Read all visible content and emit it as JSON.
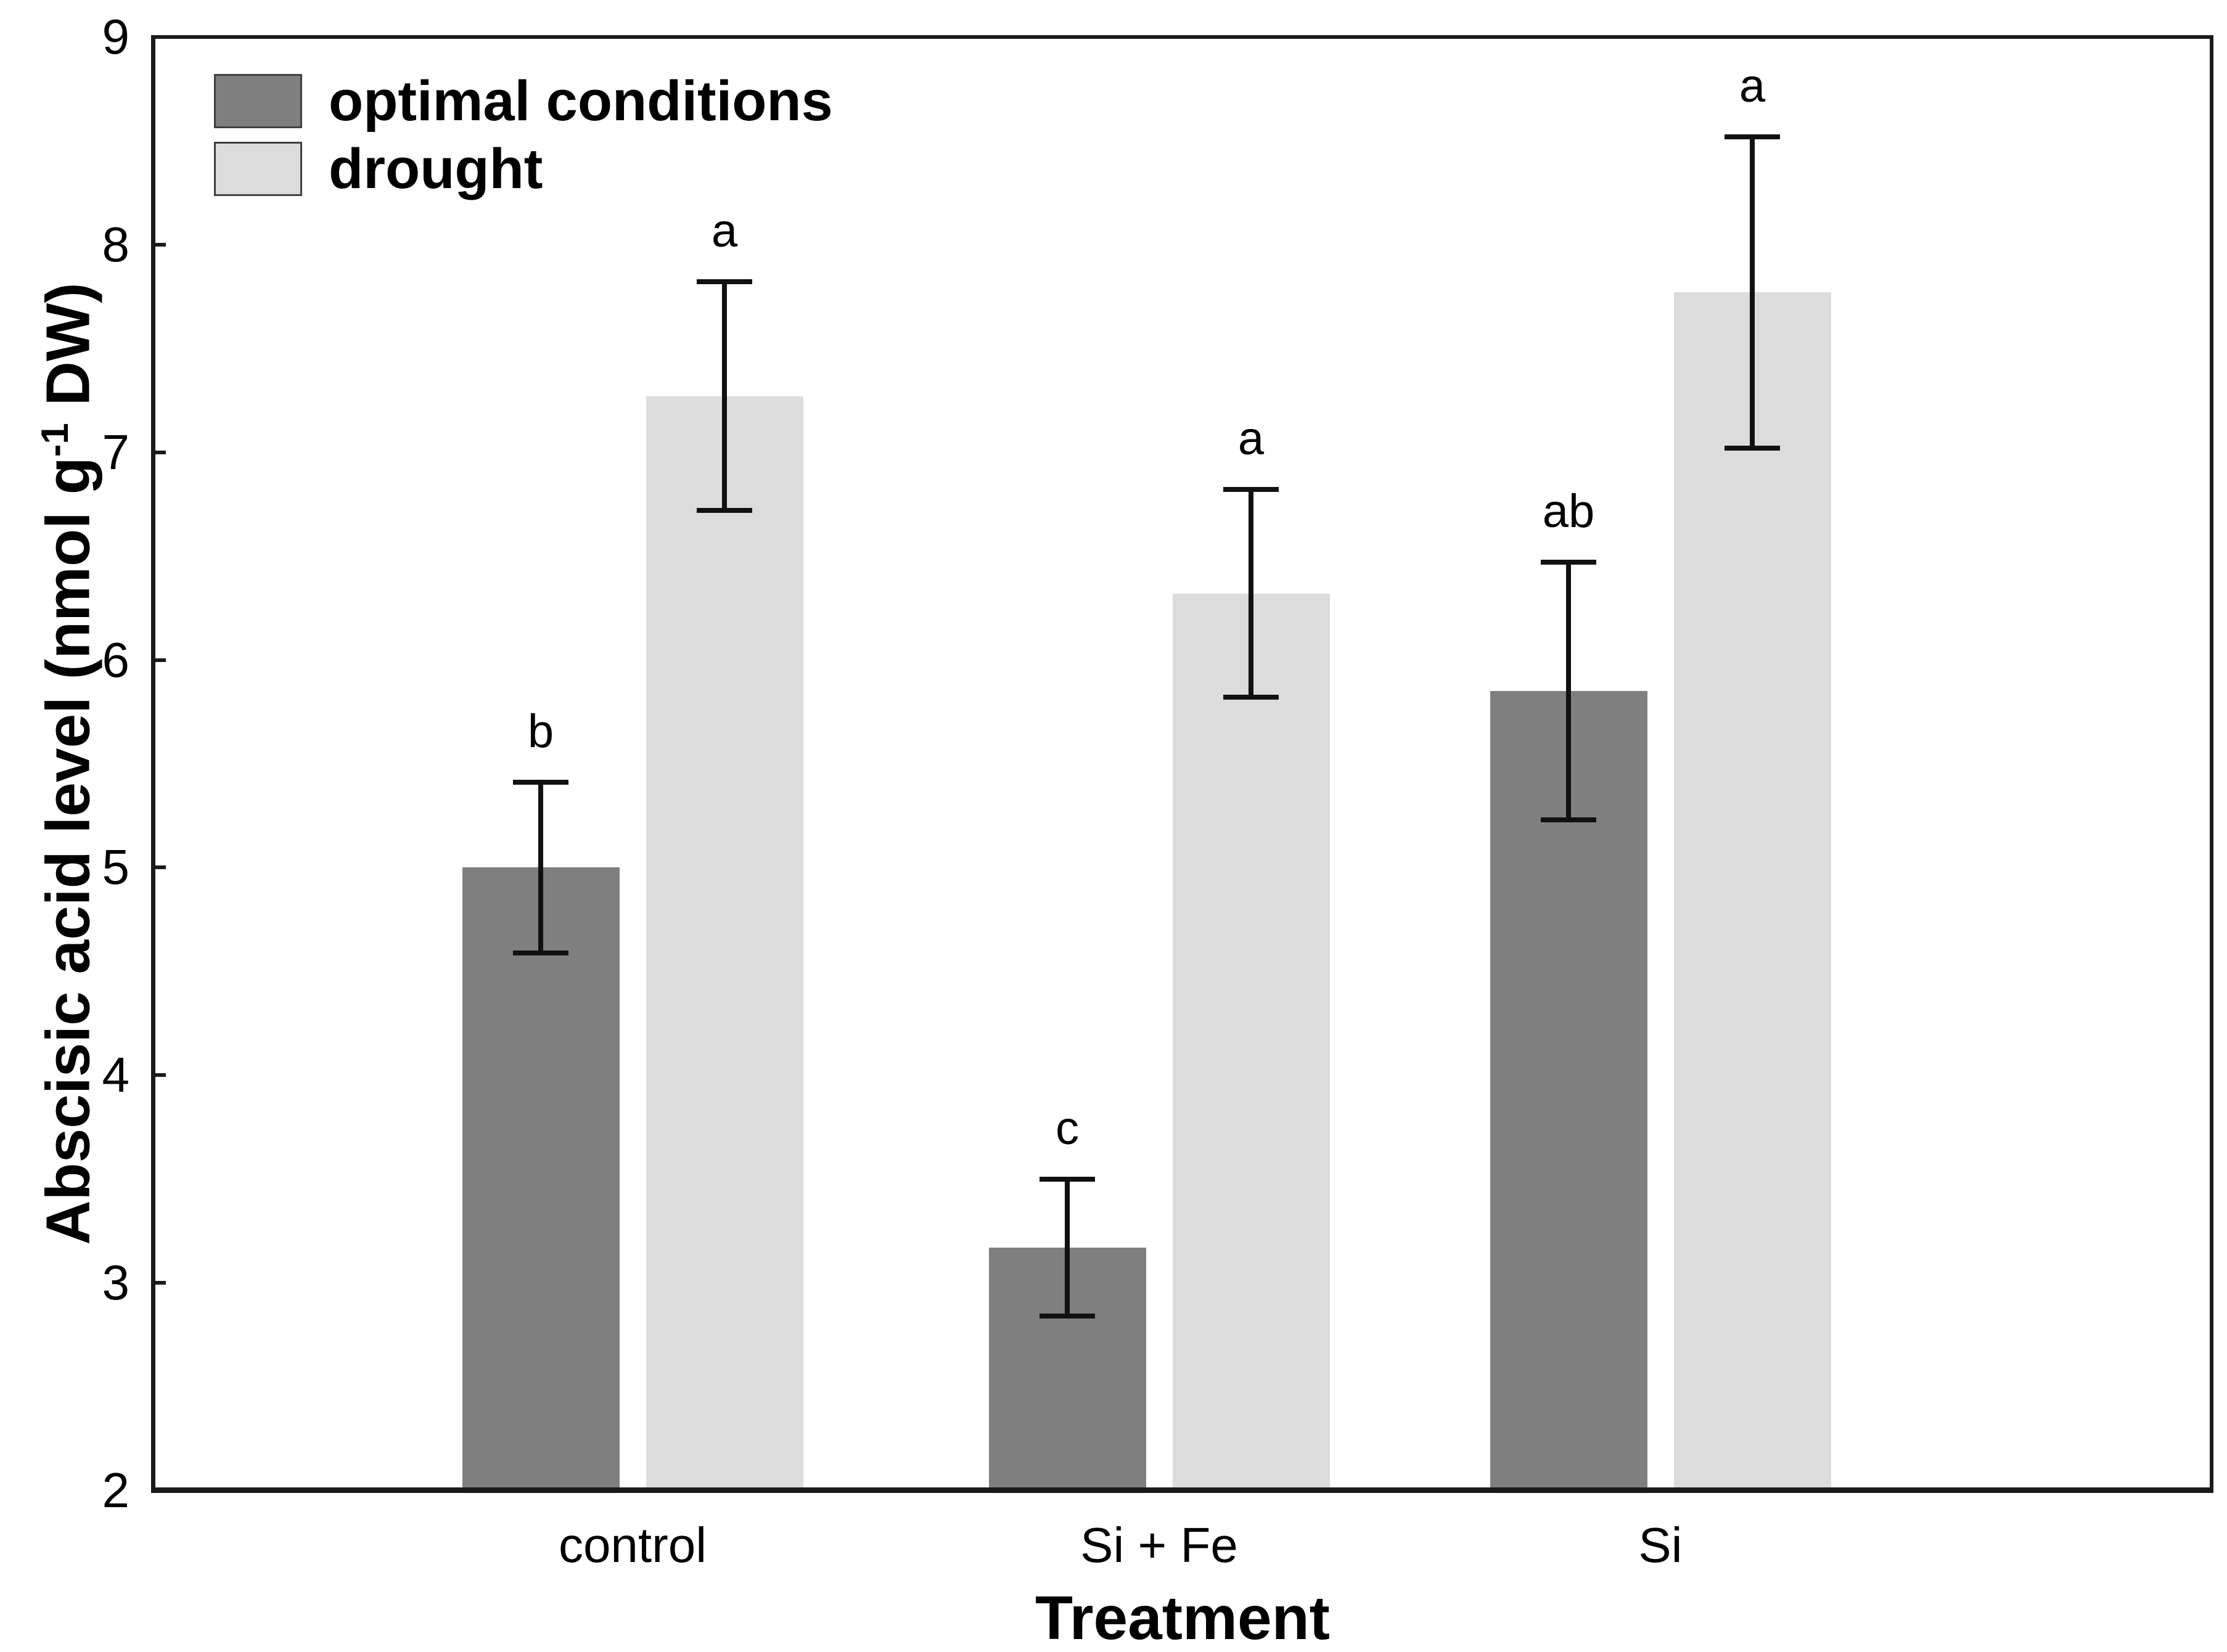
{
  "chart_data": {
    "type": "bar",
    "title": "",
    "categories": [
      "control",
      "Si + Fe",
      "Si"
    ],
    "series": [
      {
        "name": "optimal conditions",
        "color": "#7f7f7f",
        "values": [
          5.0,
          3.17,
          5.85
        ],
        "errors": [
          0.41,
          0.33,
          0.62
        ],
        "sig_letters": [
          "b",
          "c",
          "ab"
        ]
      },
      {
        "name": "drought",
        "color": "#dcdcdc",
        "values": [
          7.27,
          6.32,
          7.77
        ],
        "errors": [
          0.55,
          0.5,
          0.75
        ],
        "sig_letters": [
          "a",
          "a",
          "a"
        ]
      }
    ],
    "xlabel": "Treatment",
    "ylabel": {
      "prefix": "Abscisic acid level (nmol g",
      "superscript": "-1",
      "suffix": " DW)"
    },
    "ylim": [
      2,
      9
    ],
    "yticks": [
      9,
      8,
      7,
      6,
      5,
      4,
      3,
      2
    ],
    "grid": false,
    "legend_position": "top-left",
    "error_bar_color": "#111111",
    "axis_color": "#1a1a1a"
  }
}
